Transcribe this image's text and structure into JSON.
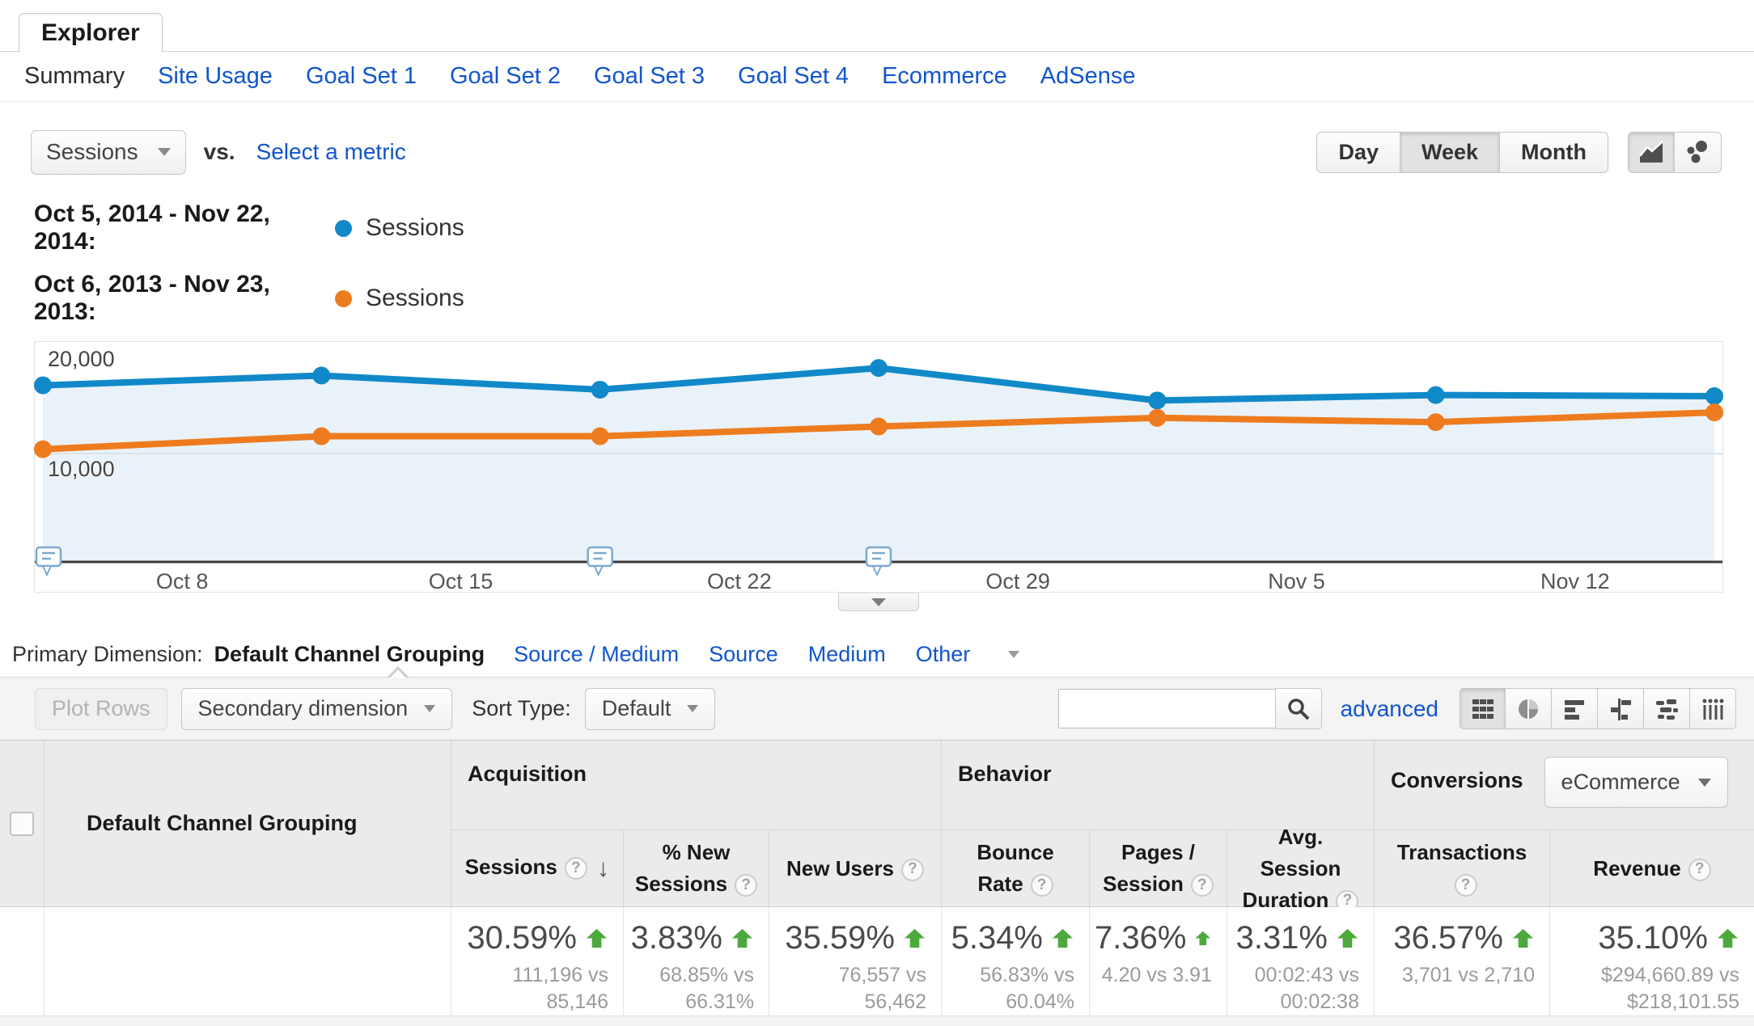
{
  "explorer": {
    "tab_label": "Explorer"
  },
  "nav": {
    "items": [
      {
        "label": "Summary",
        "active": true
      },
      {
        "label": "Site Usage"
      },
      {
        "label": "Goal Set 1"
      },
      {
        "label": "Goal Set 2"
      },
      {
        "label": "Goal Set 3"
      },
      {
        "label": "Goal Set 4"
      },
      {
        "label": "Ecommerce"
      },
      {
        "label": "AdSense"
      }
    ]
  },
  "metric_bar": {
    "metric": "Sessions",
    "vs_label": "vs.",
    "select_metric_label": "Select a metric",
    "granularity": {
      "day": "Day",
      "week": "Week",
      "month": "Month",
      "active": "Week"
    }
  },
  "legend": [
    {
      "date_range": "Oct 5, 2014 - Nov 22, 2014:",
      "series_label": "Sessions"
    },
    {
      "date_range": "Oct 6, 2013 - Nov 23, 2013:",
      "series_label": "Sessions"
    }
  ],
  "chart_data": {
    "type": "line",
    "title": "Sessions by week, current vs previous year",
    "x_labels": [
      "Oct 8",
      "Oct 15",
      "Oct 22",
      "Oct 29",
      "Nov 5",
      "Nov 12"
    ],
    "y_ticks": [
      "20,000",
      "10,000"
    ],
    "ylim": [
      0,
      20000
    ],
    "gridline_value": 10000,
    "legend_position": "top-left",
    "series": [
      {
        "name": "Sessions",
        "date_range": "Oct 5, 2014 - Nov 22, 2014",
        "color": "#1189c8",
        "values": [
          16300,
          17200,
          15900,
          17900,
          14900,
          15400,
          15300
        ]
      },
      {
        "name": "Sessions",
        "date_range": "Oct 6, 2013 - Nov 23, 2013",
        "color": "#ee7c1f",
        "values": [
          10400,
          11600,
          11600,
          12500,
          13300,
          12900,
          13800
        ]
      }
    ],
    "area_fill": "#e9f2f9",
    "annotation_points": [
      0,
      2,
      3
    ]
  },
  "primary_dimension": {
    "label": "Primary Dimension:",
    "active": "Default Channel Grouping",
    "links": [
      "Source / Medium",
      "Source",
      "Medium",
      "Other"
    ]
  },
  "toolbar": {
    "plot_rows_label": "Plot Rows",
    "secondary_dimension_label": "Secondary dimension",
    "sort_type_label": "Sort Type:",
    "sort_type_value": "Default",
    "search_value": "",
    "advanced_label": "advanced"
  },
  "table": {
    "dimension_header": "Default Channel Grouping",
    "groups": {
      "acquisition": "Acquisition",
      "behavior": "Behavior",
      "conversions": "Conversions",
      "conversions_dropdown": "eCommerce"
    },
    "columns": [
      "Sessions",
      "% New Sessions",
      "New Users",
      "Bounce Rate",
      "Pages / Session",
      "Avg. Session Duration",
      "Transactions",
      "Revenue"
    ],
    "summary_row": [
      {
        "pct": "30.59%",
        "detail1": "111,196 vs",
        "detail2": "85,146"
      },
      {
        "pct": "3.83%",
        "detail1": "68.85% vs",
        "detail2": "66.31%"
      },
      {
        "pct": "35.59%",
        "detail1": "76,557 vs 56,462",
        "detail2": ""
      },
      {
        "pct": "5.34%",
        "detail1": "56.83% vs",
        "detail2": "60.04%"
      },
      {
        "pct": "7.36%",
        "detail1": "4.20 vs 3.91",
        "detail2": ""
      },
      {
        "pct": "3.31%",
        "detail1": "00:02:43 vs",
        "detail2": "00:02:38"
      },
      {
        "pct": "36.57%",
        "detail1": "3,701 vs 2,710",
        "detail2": ""
      },
      {
        "pct": "35.10%",
        "detail1": "$294,660.89 vs",
        "detail2": "$218,101.55"
      }
    ]
  }
}
